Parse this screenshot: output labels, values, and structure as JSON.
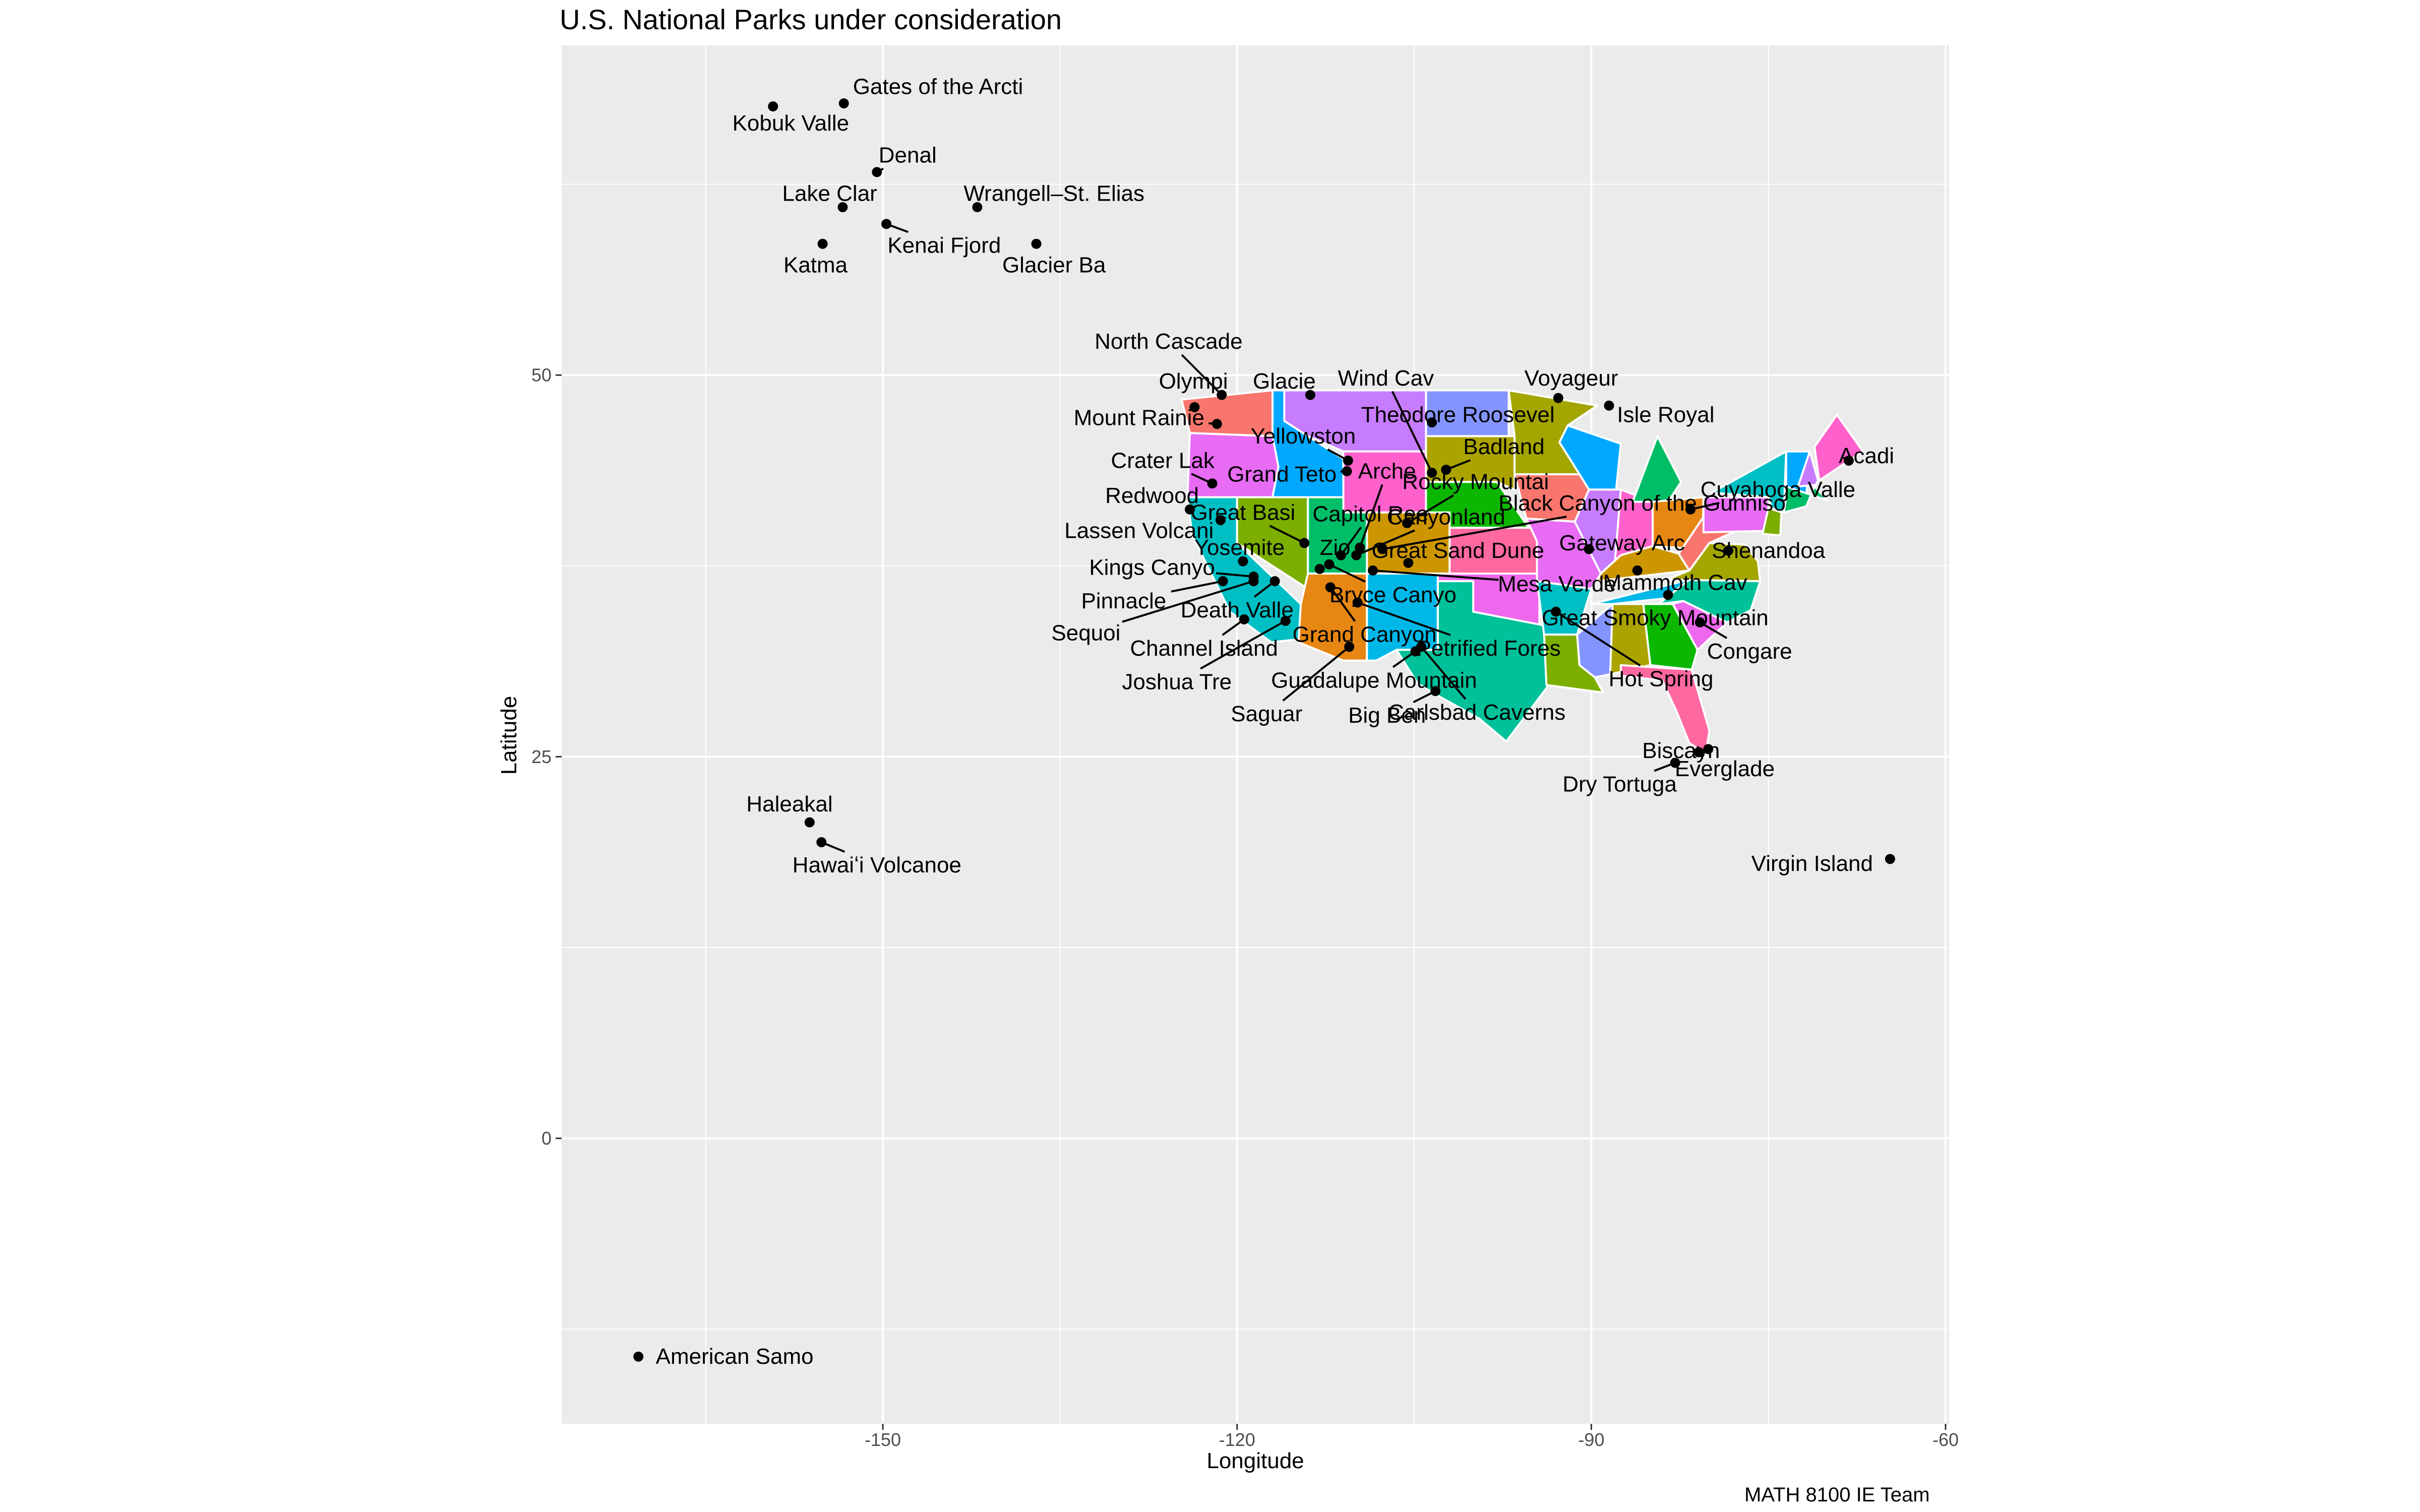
{
  "chart_data": {
    "type": "scatter",
    "title": "U.S. National Parks under consideration",
    "xlabel": "Longitude",
    "ylabel": "Latitude",
    "caption": "MATH 8100 IE Team",
    "xlim": [
      -177.2,
      -59.7
    ],
    "ylim": [
      -18.7,
      71.6
    ],
    "x_ticks": [
      -150,
      -120,
      -90,
      -60
    ],
    "y_ticks": [
      0,
      25,
      50
    ],
    "grid": true,
    "legend": "none",
    "background": "#ebebeb",
    "state_colors": [
      "#F8766D",
      "#E76BF3",
      "#00BFC4",
      "#7CAE00",
      "#00A9FF",
      "#C77CFF",
      "#FF61CC",
      "#00BE67",
      "#E68613",
      "#CD9600",
      "#00B8E7",
      "#8494FF",
      "#ABA300",
      "#0CB702",
      "#FF68A1",
      "#ED68ED",
      "#00C19A",
      "#A3A500"
    ],
    "points": [
      {
        "name": "Gates of the Arcti",
        "lon": -153.3,
        "lat": 67.8,
        "lx": -153.3,
        "ly": 68.9,
        "anchor": "start"
      },
      {
        "name": "Kobuk Valle",
        "lon": -159.3,
        "lat": 67.6,
        "lx": -157.8,
        "ly": 66.5,
        "anchor": "middle"
      },
      {
        "name": "Denal",
        "lon": -150.5,
        "lat": 63.3,
        "lx": -147.9,
        "ly": 64.4,
        "anchor": "middle"
      },
      {
        "name": "Lake Clar",
        "lon": -153.4,
        "lat": 61.0,
        "lx": -154.5,
        "ly": 61.9,
        "anchor": "middle"
      },
      {
        "name": "Wrangell–St. Elias",
        "lon": -142.0,
        "lat": 61.0,
        "lx": -135.5,
        "ly": 61.9,
        "anchor": "middle"
      },
      {
        "name": "Kenai Fjord",
        "lon": -149.7,
        "lat": 59.9,
        "lx": -144.8,
        "ly": 58.5,
        "anchor": "middle"
      },
      {
        "name": "Katma",
        "lon": -155.1,
        "lat": 58.6,
        "lx": -155.7,
        "ly": 57.2,
        "anchor": "middle"
      },
      {
        "name": "Glacier Ba",
        "lon": -137.0,
        "lat": 58.6,
        "lx": -135.5,
        "ly": 57.2,
        "anchor": "middle"
      },
      {
        "name": "North Cascade",
        "lon": -121.3,
        "lat": 48.7,
        "lx": -125.8,
        "ly": 52.2,
        "anchor": "middle"
      },
      {
        "name": "Olympi",
        "lon": -123.6,
        "lat": 47.9,
        "lx": -123.7,
        "ly": 49.6,
        "anchor": "middle"
      },
      {
        "name": "Glacie",
        "lon": -113.8,
        "lat": 48.7,
        "lx": -116.0,
        "ly": 49.6,
        "anchor": "middle"
      },
      {
        "name": "Wind Cav",
        "lon": -103.5,
        "lat": 43.6,
        "lx": -107.4,
        "ly": 49.8,
        "anchor": "middle"
      },
      {
        "name": "Voyageur",
        "lon": -92.8,
        "lat": 48.5,
        "lx": -91.7,
        "ly": 49.8,
        "anchor": "middle"
      },
      {
        "name": "Mount Rainie",
        "lon": -121.7,
        "lat": 46.8,
        "lx": -128.3,
        "ly": 47.2,
        "anchor": "middle"
      },
      {
        "name": "Theodore Roosevel",
        "lon": -103.5,
        "lat": 46.9,
        "lx": -101.3,
        "ly": 47.4,
        "anchor": "middle"
      },
      {
        "name": "Isle Royal",
        "lon": -88.5,
        "lat": 48.0,
        "lx": -83.7,
        "ly": 47.4,
        "anchor": "middle"
      },
      {
        "name": "Yellowston",
        "lon": -110.6,
        "lat": 44.4,
        "lx": -114.4,
        "ly": 46.0,
        "anchor": "middle"
      },
      {
        "name": "Badland",
        "lon": -102.3,
        "lat": 43.8,
        "lx": -97.4,
        "ly": 45.3,
        "anchor": "middle"
      },
      {
        "name": "Crater Lak",
        "lon": -122.1,
        "lat": 42.9,
        "lx": -126.3,
        "ly": 44.4,
        "anchor": "middle"
      },
      {
        "name": "Acadi",
        "lon": -68.2,
        "lat": 44.4,
        "lx": -66.7,
        "ly": 44.7,
        "anchor": "middle"
      },
      {
        "name": "Grand Teto",
        "lon": -110.7,
        "lat": 43.7,
        "lx": -116.2,
        "ly": 43.5,
        "anchor": "middle"
      },
      {
        "name": "Arche",
        "lon": -109.6,
        "lat": 38.7,
        "lx": -107.3,
        "ly": 43.7,
        "anchor": "middle"
      },
      {
        "name": "Rocky Mountai",
        "lon": -105.6,
        "lat": 40.3,
        "lx": -99.8,
        "ly": 43.0,
        "anchor": "middle"
      },
      {
        "name": "Redwood",
        "lon": -124.0,
        "lat": 41.2,
        "lx": -127.2,
        "ly": 42.1,
        "anchor": "middle"
      },
      {
        "name": "Cuyahoga Valle",
        "lon": -81.6,
        "lat": 41.2,
        "lx": -74.2,
        "ly": 42.5,
        "anchor": "middle"
      },
      {
        "name": "Black Canyon of the Gunniso",
        "lon": -107.7,
        "lat": 38.6,
        "lx": -85.7,
        "ly": 41.6,
        "anchor": "middle"
      },
      {
        "name": "Great Basi",
        "lon": -114.3,
        "lat": 39.0,
        "lx": -119.5,
        "ly": 41.0,
        "anchor": "middle"
      },
      {
        "name": "Capitol Ree",
        "lon": -111.2,
        "lat": 38.2,
        "lx": -108.7,
        "ly": 40.9,
        "anchor": "middle"
      },
      {
        "name": "Canyonland",
        "lon": -109.9,
        "lat": 38.2,
        "lx": -102.3,
        "ly": 40.7,
        "anchor": "middle"
      },
      {
        "name": "Lassen Volcani",
        "lon": -121.4,
        "lat": 40.5,
        "lx": -128.3,
        "ly": 39.8,
        "anchor": "middle"
      },
      {
        "name": "Yosemite",
        "lon": -119.5,
        "lat": 37.8,
        "lx": -119.8,
        "ly": 38.7,
        "anchor": "middle"
      },
      {
        "name": "Zio",
        "lon": -113.0,
        "lat": 37.3,
        "lx": -111.7,
        "ly": 38.7,
        "anchor": "middle"
      },
      {
        "name": "Great Sand Dune",
        "lon": -105.5,
        "lat": 37.7,
        "lx": -101.3,
        "ly": 38.5,
        "anchor": "middle"
      },
      {
        "name": "Gateway Arc",
        "lon": -90.2,
        "lat": 38.6,
        "lx": -87.4,
        "ly": 39.0,
        "anchor": "middle"
      },
      {
        "name": "Shenandoa",
        "lon": -78.4,
        "lat": 38.5,
        "lx": -75.0,
        "ly": 38.5,
        "anchor": "middle"
      },
      {
        "name": "Kings Canyo",
        "lon": -118.6,
        "lat": 36.8,
        "lx": -127.2,
        "ly": 37.4,
        "anchor": "middle"
      },
      {
        "name": "Mesa Verde",
        "lon": -108.5,
        "lat": 37.2,
        "lx": -92.9,
        "ly": 36.3,
        "anchor": "middle"
      },
      {
        "name": "Mammoth Cav",
        "lon": -86.1,
        "lat": 37.2,
        "lx": -82.9,
        "ly": 36.4,
        "anchor": "middle"
      },
      {
        "name": "Bryce Canyo",
        "lon": -112.2,
        "lat": 37.6,
        "lx": -106.8,
        "ly": 35.6,
        "anchor": "middle"
      },
      {
        "name": "Pinnacle",
        "lon": -121.2,
        "lat": 36.5,
        "lx": -129.6,
        "ly": 35.2,
        "anchor": "middle"
      },
      {
        "name": "Death Valle",
        "lon": -116.8,
        "lat": 36.5,
        "lx": -120.0,
        "ly": 34.6,
        "anchor": "middle"
      },
      {
        "name": "Great Smoky Mountain",
        "lon": -83.5,
        "lat": 35.6,
        "lx": -84.6,
        "ly": 34.1,
        "anchor": "middle"
      },
      {
        "name": "Sequoi",
        "lon": -118.6,
        "lat": 36.5,
        "lx": -132.8,
        "ly": 33.1,
        "anchor": "middle"
      },
      {
        "name": "Grand Canyon",
        "lon": -112.1,
        "lat": 36.1,
        "lx": -109.2,
        "ly": 33.0,
        "anchor": "middle"
      },
      {
        "name": "Channel Island",
        "lon": -119.4,
        "lat": 34.0,
        "lx": -122.8,
        "ly": 32.1,
        "anchor": "middle"
      },
      {
        "name": "Petrified Fores",
        "lon": -109.8,
        "lat": 35.1,
        "lx": -98.7,
        "ly": 32.1,
        "anchor": "middle"
      },
      {
        "name": "Congare",
        "lon": -80.8,
        "lat": 33.8,
        "lx": -76.6,
        "ly": 31.9,
        "anchor": "middle"
      },
      {
        "name": "Joshua Tre",
        "lon": -115.9,
        "lat": 33.9,
        "lx": -125.1,
        "ly": 29.9,
        "anchor": "middle"
      },
      {
        "name": "Guadalupe Mountain",
        "lon": -104.9,
        "lat": 31.9,
        "lx": -108.4,
        "ly": 30.0,
        "anchor": "middle"
      },
      {
        "name": "Hot Spring",
        "lon": -93.0,
        "lat": 34.5,
        "lx": -84.1,
        "ly": 30.1,
        "anchor": "middle"
      },
      {
        "name": "Saguar",
        "lon": -110.5,
        "lat": 32.2,
        "lx": -117.5,
        "ly": 27.8,
        "anchor": "middle"
      },
      {
        "name": "Carlsbad Caverns",
        "lon": -104.4,
        "lat": 32.2,
        "lx": -99.7,
        "ly": 27.9,
        "anchor": "middle"
      },
      {
        "name": "Big Ben",
        "lon": -103.2,
        "lat": 29.3,
        "lx": -107.3,
        "ly": 27.7,
        "anchor": "middle"
      },
      {
        "name": "Biscayn",
        "lon": -80.1,
        "lat": 25.5,
        "lx": -82.4,
        "ly": 25.4,
        "anchor": "middle"
      },
      {
        "name": "Everglade",
        "lon": -80.9,
        "lat": 25.3,
        "lx": -78.7,
        "ly": 24.2,
        "anchor": "middle"
      },
      {
        "name": "Dry Tortuga",
        "lon": -82.9,
        "lat": 24.6,
        "lx": -87.6,
        "ly": 23.2,
        "anchor": "middle"
      },
      {
        "name": "Haleakal",
        "lon": -156.2,
        "lat": 20.7,
        "lx": -157.9,
        "ly": 21.9,
        "anchor": "middle"
      },
      {
        "name": "Hawaiʻi Volcanoe",
        "lon": -155.2,
        "lat": 19.4,
        "lx": -150.5,
        "ly": 17.9,
        "anchor": "middle"
      },
      {
        "name": "Virgin Island",
        "lon": -64.7,
        "lat": 18.3,
        "lx": -71.3,
        "ly": 18.0,
        "anchor": "middle"
      },
      {
        "name": "American Samo",
        "lon": -170.7,
        "lat": -14.3,
        "lx": -170.0,
        "ly": -14.3,
        "anchor": "start"
      }
    ]
  }
}
